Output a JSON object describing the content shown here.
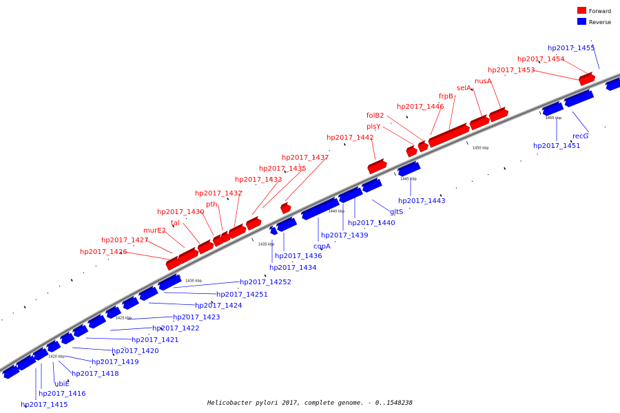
{
  "title": "Helicobacter pylori 2017, complete genome. - 0..1548238",
  "colors": {
    "forward": "#ff0000",
    "reverse": "#0000ff",
    "axis": "#a0a0a0",
    "leader": "#ff0000"
  },
  "legend": {
    "forward": "Forward",
    "reverse": "Reverse"
  },
  "ticks": [
    "1420 kbp",
    "1425 kbp",
    "1430 kbp",
    "1435 kbp",
    "1440 kbp",
    "1445 kbp",
    "1450 kbp",
    "1455 kbp"
  ],
  "forward_genes": [
    "hp2017_1426",
    "hp2017_1427",
    "murE2",
    "tal",
    "hp2017_1430",
    "pth",
    "hp2017_1432",
    "hp2017_1433",
    "hp2017_1435",
    "hp2017_1437",
    "hp2017_1442",
    "plsY",
    "folB2",
    "hp2017_1446",
    "frpB",
    "selA",
    "nusA",
    "hp2017_1453",
    "hp2017_1454"
  ],
  "reverse_genes": [
    "hp2017_1455",
    "recG",
    "hp2017_1451",
    "hp2017_1443",
    "gltS",
    "hp2017_1440",
    "hp2017_1439",
    "copA",
    "hp2017_1436",
    "hp2017_1434",
    "hp2017_14252",
    "hp2017_14251",
    "hp2017_1424",
    "hp2017_1423",
    "hp2017_1422",
    "hp2017_1421",
    "hp2017_1420",
    "hp2017_1419",
    "hp2017_1418",
    "ubiE",
    "hp2017_1416",
    "hp2017_1415"
  ]
}
